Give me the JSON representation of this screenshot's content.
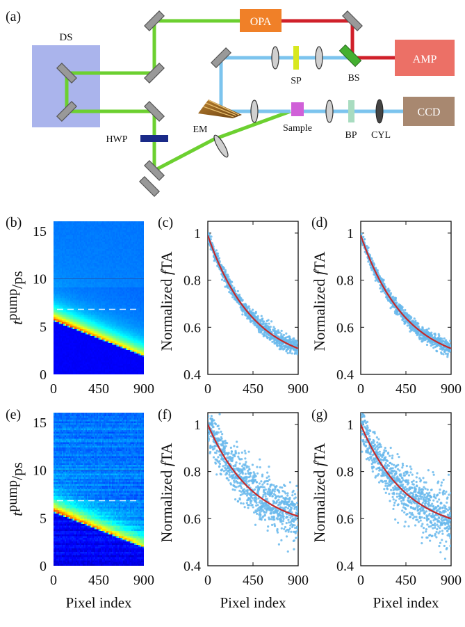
{
  "schematic": {
    "panel_label": "(a)",
    "labels": {
      "ds": "DS",
      "opa": "OPA",
      "amp": "AMP",
      "sp": "SP",
      "bs": "BS",
      "em": "EM",
      "sample": "Sample",
      "bp": "BP",
      "cyl": "CYL",
      "ccd": "CCD",
      "hwp": "HWP"
    },
    "colors": {
      "green_beam": "#6cd030",
      "red_beam": "#d0202a",
      "blue_beam": "#7cc4ee",
      "ds_box": "#aab4ec",
      "opa_box": "#f08028",
      "amp_box": "#ec7066",
      "ccd_box": "#a88870",
      "hwp": "#1a2a88",
      "sp": "#d8e820",
      "bs": "#44b030",
      "sample": "#d060d8",
      "bp": "#a8dcc0",
      "em": "#9a6420"
    }
  },
  "chart_data": [
    {
      "id": "b",
      "panel_label": "(b)",
      "type": "heatmap",
      "ylabel_main": "t",
      "ylabel_sup": "pump",
      "ylabel_unit": "/ps",
      "xlabel": "",
      "xlim": [
        0,
        900
      ],
      "ylim": [
        0,
        16
      ],
      "xticks": [
        "0",
        "450",
        "900"
      ],
      "yticks": [
        "0",
        "5",
        "10",
        "15"
      ],
      "signal_line": {
        "t_at_0": 5.7,
        "t_at_900": 2.0
      },
      "dashed_line_t": 6.8,
      "noise": "low"
    },
    {
      "id": "c",
      "panel_label": "(c)",
      "type": "scatter",
      "ylabel": "Normalized",
      "ylabel_italic": "f",
      "ylabel_tail": "TA",
      "xlabel": "",
      "xlim": [
        0,
        900
      ],
      "ylim": [
        0.4,
        1.05
      ],
      "xticks": [
        "0",
        "450",
        "900"
      ],
      "yticks": [
        "0.4",
        "0.6",
        "0.8",
        "1"
      ],
      "fit": {
        "start": 0.99,
        "end": 0.51
      },
      "noise": 0.012,
      "series": [
        {
          "name": "data",
          "color": "#69b8ec"
        },
        {
          "name": "fit",
          "color": "#c42a2a"
        }
      ]
    },
    {
      "id": "d",
      "panel_label": "(d)",
      "type": "scatter",
      "ylabel": "Normalized",
      "ylabel_italic": "f",
      "ylabel_tail": "TA",
      "xlabel": "",
      "xlim": [
        0,
        900
      ],
      "ylim": [
        0.4,
        1.05
      ],
      "xticks": [
        "0",
        "450",
        "900"
      ],
      "yticks": [
        "0.4",
        "0.6",
        "0.8",
        "1"
      ],
      "fit": {
        "start": 0.99,
        "end": 0.51
      },
      "noise": 0.012,
      "series": [
        {
          "name": "data",
          "color": "#69b8ec"
        },
        {
          "name": "fit",
          "color": "#c42a2a"
        }
      ]
    },
    {
      "id": "e",
      "panel_label": "(e)",
      "type": "heatmap",
      "ylabel_main": "t",
      "ylabel_sup": "pump",
      "ylabel_unit": "/ps",
      "xlabel": "Pixel index",
      "xlim": [
        0,
        900
      ],
      "ylim": [
        0,
        16
      ],
      "xticks": [
        "0",
        "450",
        "900"
      ],
      "yticks": [
        "0",
        "5",
        "10",
        "15"
      ],
      "signal_line": {
        "t_at_0": 5.7,
        "t_at_900": 2.0
      },
      "dashed_line_t": 6.8,
      "noise": "high"
    },
    {
      "id": "f",
      "panel_label": "(f)",
      "type": "scatter",
      "ylabel": "Normalized",
      "ylabel_italic": "f",
      "ylabel_tail": "TA",
      "xlabel": "Pixel index",
      "xlim": [
        0,
        900
      ],
      "ylim": [
        0.4,
        1.05
      ],
      "xticks": [
        "0",
        "450",
        "900"
      ],
      "yticks": [
        "0.4",
        "0.6",
        "0.8",
        "1"
      ],
      "fit": {
        "start": 1.0,
        "end": 0.61
      },
      "noise": 0.045,
      "series": [
        {
          "name": "data",
          "color": "#69b8ec"
        },
        {
          "name": "fit",
          "color": "#c42a2a"
        }
      ]
    },
    {
      "id": "g",
      "panel_label": "(g)",
      "type": "scatter",
      "ylabel": "Normalized",
      "ylabel_italic": "f",
      "ylabel_tail": "TA",
      "xlabel": "Pixel index",
      "xlim": [
        0,
        900
      ],
      "ylim": [
        0.4,
        1.05
      ],
      "xticks": [
        "0",
        "450",
        "900"
      ],
      "yticks": [
        "0.4",
        "0.6",
        "0.8",
        "1"
      ],
      "fit": {
        "start": 1.0,
        "end": 0.6
      },
      "noise": 0.045,
      "series": [
        {
          "name": "data",
          "color": "#69b8ec"
        },
        {
          "name": "fit",
          "color": "#c42a2a"
        }
      ]
    }
  ]
}
